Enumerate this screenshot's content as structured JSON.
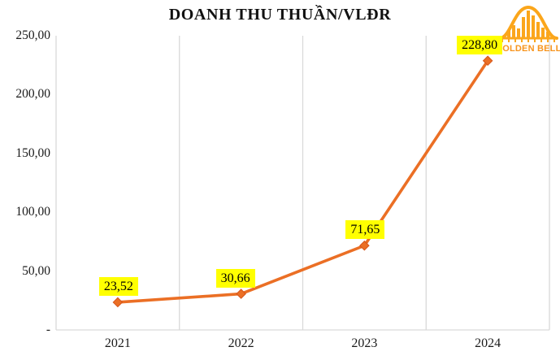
{
  "logo": {
    "text": "GOLDEN BELL",
    "color": "#FBA61B",
    "text_color": "#F7941D"
  },
  "chart_data": {
    "type": "line",
    "title": "DOANH THU THUẦN/VLĐR",
    "categories": [
      "2021",
      "2022",
      "2023",
      "2024"
    ],
    "values": [
      23.52,
      30.66,
      71.65,
      228.8
    ],
    "data_labels": [
      "23,52",
      "30,66",
      "71,65",
      "228,80"
    ],
    "label_dx": [
      1,
      -7,
      1,
      -10
    ],
    "y_ticks": [
      0,
      50,
      100,
      150,
      200,
      250
    ],
    "y_tick_labels": [
      "-",
      "50,00",
      "100,00",
      "150,00",
      "200,00",
      "250,00"
    ],
    "ylim": [
      0,
      250
    ],
    "xlabel": "",
    "ylabel": "",
    "grid": "vertical-only",
    "legend": "none",
    "line_color": "#EB6F25",
    "marker": "diamond",
    "marker_color": "#EB6F25",
    "marker_edge_color": "#D6551A",
    "label_bg": "#FFFF00",
    "gridline_color": "#D9D9D9"
  }
}
